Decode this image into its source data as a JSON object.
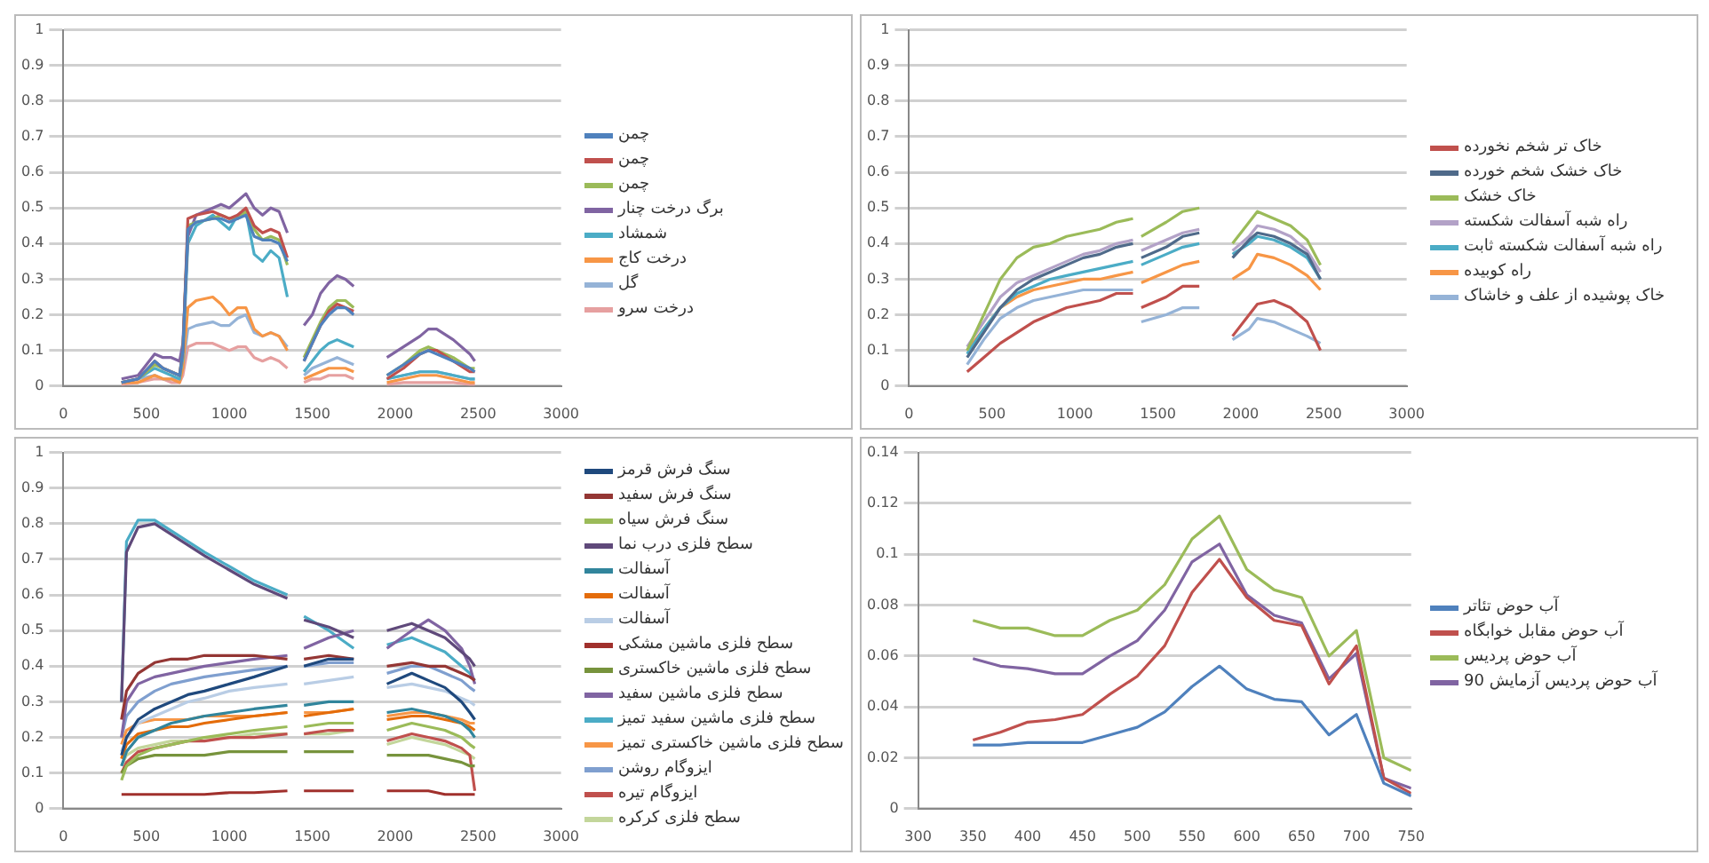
{
  "chart_data": [
    {
      "type": "line",
      "x": [
        350,
        450,
        550,
        600,
        650,
        700,
        720,
        750,
        800,
        900,
        950,
        1000,
        1050,
        1100,
        1150,
        1200,
        1250,
        1300,
        1350,
        1400,
        1450,
        1500,
        1550,
        1600,
        1650,
        1700,
        1750,
        1850,
        1950,
        2050,
        2150,
        2200,
        2250,
        2350,
        2450,
        2480
      ],
      "xlim": [
        0,
        3000
      ],
      "xticks": [
        0,
        500,
        1000,
        1500,
        2000,
        2500,
        3000
      ],
      "ylim": [
        0,
        1
      ],
      "yticks": [
        0,
        0.1,
        0.2,
        0.3,
        0.4,
        0.5,
        0.6,
        0.7,
        0.8,
        0.9,
        1
      ],
      "grid": "y",
      "legend": "right",
      "series": [
        {
          "name": "چمن",
          "color": "#4f81bd",
          "values": [
            0.01,
            0.02,
            0.07,
            0.05,
            0.04,
            0.03,
            0.1,
            0.44,
            0.46,
            0.47,
            0.47,
            0.46,
            0.47,
            0.48,
            0.42,
            0.41,
            0.41,
            0.4,
            0.35,
            null,
            0.07,
            0.12,
            0.17,
            0.2,
            0.22,
            0.22,
            0.2,
            null,
            0.03,
            0.06,
            0.09,
            0.1,
            0.09,
            0.07,
            0.05,
            0.04
          ]
        },
        {
          "name": "چمن",
          "color": "#c0504d",
          "values": [
            0.01,
            0.02,
            0.07,
            0.05,
            0.04,
            0.03,
            0.1,
            0.47,
            0.48,
            0.49,
            0.48,
            0.47,
            0.48,
            0.5,
            0.45,
            0.43,
            0.44,
            0.43,
            0.36,
            null,
            0.07,
            0.12,
            0.17,
            0.21,
            0.23,
            0.22,
            0.21,
            null,
            0.02,
            0.05,
            0.09,
            0.1,
            0.1,
            0.07,
            0.04,
            0.04
          ]
        },
        {
          "name": "چمن",
          "color": "#9bbb59",
          "values": [
            0.01,
            0.02,
            0.06,
            0.05,
            0.04,
            0.03,
            0.1,
            0.45,
            0.46,
            0.47,
            0.48,
            0.47,
            0.47,
            0.49,
            0.44,
            0.41,
            0.42,
            0.41,
            0.34,
            null,
            0.08,
            0.13,
            0.18,
            0.22,
            0.24,
            0.24,
            0.22,
            null,
            0.03,
            0.06,
            0.1,
            0.11,
            0.1,
            0.08,
            0.05,
            0.05
          ]
        },
        {
          "name": "برگ درخت چنار",
          "color": "#8064a2",
          "values": [
            0.02,
            0.03,
            0.09,
            0.08,
            0.08,
            0.07,
            0.12,
            0.42,
            0.48,
            0.5,
            0.51,
            0.5,
            0.52,
            0.54,
            0.5,
            0.48,
            0.5,
            0.49,
            0.43,
            null,
            0.17,
            0.2,
            0.26,
            0.29,
            0.31,
            0.3,
            0.28,
            null,
            0.08,
            0.11,
            0.14,
            0.16,
            0.16,
            0.13,
            0.09,
            0.07
          ]
        },
        {
          "name": "شمشاد",
          "color": "#4bacc6",
          "values": [
            0.01,
            0.02,
            0.05,
            0.04,
            0.03,
            0.02,
            0.08,
            0.4,
            0.45,
            0.48,
            0.46,
            0.44,
            0.48,
            0.49,
            0.37,
            0.35,
            0.38,
            0.36,
            0.25,
            null,
            0.04,
            0.07,
            0.1,
            0.12,
            0.13,
            0.12,
            0.11,
            null,
            0.02,
            0.03,
            0.04,
            0.04,
            0.04,
            0.03,
            0.02,
            0.02
          ]
        },
        {
          "name": "درخت کاج",
          "color": "#f79646",
          "values": [
            0.01,
            0.01,
            0.03,
            0.02,
            0.02,
            0.01,
            0.05,
            0.22,
            0.24,
            0.25,
            0.23,
            0.2,
            0.22,
            0.22,
            0.16,
            0.14,
            0.15,
            0.14,
            0.1,
            null,
            0.02,
            0.03,
            0.04,
            0.05,
            0.05,
            0.05,
            0.04,
            null,
            0.01,
            0.02,
            0.03,
            0.03,
            0.03,
            0.02,
            0.01,
            0.01
          ]
        },
        {
          "name": "گل",
          "color": "#95b3d7",
          "values": [
            0.01,
            0.02,
            0.03,
            0.02,
            0.02,
            0.02,
            0.05,
            0.16,
            0.17,
            0.18,
            0.17,
            0.17,
            0.19,
            0.2,
            0.15,
            0.14,
            0.15,
            0.14,
            0.11,
            null,
            0.03,
            0.05,
            0.06,
            0.07,
            0.08,
            0.07,
            0.06,
            null,
            0.02,
            0.03,
            0.04,
            0.04,
            0.04,
            0.03,
            0.02,
            0.02
          ]
        },
        {
          "name": "درخت سرو",
          "color": "#e6a0a0",
          "values": [
            0.005,
            0.01,
            0.02,
            0.02,
            0.01,
            0.01,
            0.03,
            0.11,
            0.12,
            0.12,
            0.11,
            0.1,
            0.11,
            0.11,
            0.08,
            0.07,
            0.08,
            0.07,
            0.05,
            null,
            0.01,
            0.02,
            0.02,
            0.03,
            0.03,
            0.03,
            0.02,
            null,
            0.005,
            0.01,
            0.01,
            0.01,
            0.01,
            0.01,
            0.005,
            0.005
          ]
        }
      ]
    },
    {
      "type": "line",
      "x": [
        350,
        450,
        550,
        650,
        750,
        850,
        950,
        1050,
        1150,
        1250,
        1350,
        1380,
        1400,
        1550,
        1650,
        1750,
        1850,
        1950,
        2050,
        2100,
        2200,
        2300,
        2400,
        2480
      ],
      "xlim": [
        0,
        3000
      ],
      "xticks": [
        0,
        500,
        1000,
        1500,
        2000,
        2500,
        3000
      ],
      "ylim": [
        0,
        1
      ],
      "yticks": [
        0,
        0.1,
        0.2,
        0.3,
        0.4,
        0.5,
        0.6,
        0.7,
        0.8,
        0.9,
        1
      ],
      "grid": "y",
      "legend": "right",
      "series": [
        {
          "name": "خاک تر شخم نخورده",
          "color": "#c0504d",
          "values": [
            0.04,
            0.08,
            0.12,
            0.15,
            0.18,
            0.2,
            0.22,
            0.23,
            0.24,
            0.26,
            0.26,
            null,
            0.22,
            0.25,
            0.28,
            0.28,
            null,
            0.14,
            0.2,
            0.23,
            0.24,
            0.22,
            0.18,
            0.1
          ]
        },
        {
          "name": "خاک خشک شخم خورده",
          "color": "#4f6a8a",
          "values": [
            0.08,
            0.15,
            0.22,
            0.27,
            0.3,
            0.32,
            0.34,
            0.36,
            0.37,
            0.39,
            0.4,
            null,
            0.36,
            0.39,
            0.42,
            0.43,
            null,
            0.36,
            0.41,
            0.43,
            0.42,
            0.4,
            0.37,
            0.3
          ]
        },
        {
          "name": "خاک خشک",
          "color": "#9bbb59",
          "values": [
            0.1,
            0.2,
            0.3,
            0.36,
            0.39,
            0.4,
            0.42,
            0.43,
            0.44,
            0.46,
            0.47,
            null,
            0.42,
            0.46,
            0.49,
            0.5,
            null,
            0.4,
            0.46,
            0.49,
            0.47,
            0.45,
            0.41,
            0.34
          ]
        },
        {
          "name": "راه شبه آسفالت شکسته",
          "color": "#b3a2c7",
          "values": [
            0.11,
            0.18,
            0.25,
            0.29,
            0.31,
            0.33,
            0.35,
            0.37,
            0.38,
            0.4,
            0.41,
            null,
            0.38,
            0.41,
            0.43,
            0.44,
            null,
            0.38,
            0.42,
            0.45,
            0.44,
            0.42,
            0.38,
            0.32
          ]
        },
        {
          "name": "راه شبه آسفالت شکسته ثابت",
          "color": "#4bacc6",
          "values": [
            0.09,
            0.16,
            0.22,
            0.26,
            0.28,
            0.3,
            0.31,
            0.32,
            0.33,
            0.34,
            0.35,
            null,
            0.34,
            0.37,
            0.39,
            0.4,
            null,
            0.37,
            0.4,
            0.42,
            0.41,
            0.39,
            0.36,
            0.3
          ]
        },
        {
          "name": "راه کوبیده",
          "color": "#f79646",
          "values": [
            0.1,
            0.16,
            0.22,
            0.25,
            0.27,
            0.28,
            0.29,
            0.3,
            0.3,
            0.31,
            0.32,
            null,
            0.29,
            0.32,
            0.34,
            0.35,
            null,
            0.3,
            0.33,
            0.37,
            0.36,
            0.34,
            0.31,
            0.27
          ]
        },
        {
          "name": "خاک پوشیده از علف و خاشاک",
          "color": "#95b3d7",
          "values": [
            0.06,
            0.13,
            0.19,
            0.22,
            0.24,
            0.25,
            0.26,
            0.27,
            0.27,
            0.27,
            0.27,
            null,
            0.18,
            0.2,
            0.22,
            0.22,
            null,
            0.13,
            0.16,
            0.19,
            0.18,
            0.16,
            0.14,
            0.12
          ]
        }
      ]
    },
    {
      "type": "line",
      "x": [
        350,
        380,
        450,
        550,
        650,
        750,
        850,
        1000,
        1150,
        1350,
        1400,
        1450,
        1600,
        1750,
        1850,
        1950,
        2100,
        2200,
        2300,
        2400,
        2450,
        2480
      ],
      "xlim": [
        0,
        3000
      ],
      "xticks": [
        0,
        500,
        1000,
        1500,
        2000,
        2500,
        3000
      ],
      "ylim": [
        0,
        1
      ],
      "yticks": [
        0,
        0.1,
        0.2,
        0.3,
        0.4,
        0.5,
        0.6,
        0.7,
        0.8,
        0.9,
        1
      ],
      "grid": "y",
      "legend": "right",
      "series": [
        {
          "name": "سنگ فرش قرمز",
          "color": "#1f497d",
          "values": [
            0.15,
            0.2,
            0.25,
            0.28,
            0.3,
            0.32,
            0.33,
            0.35,
            0.37,
            0.4,
            null,
            0.4,
            0.42,
            0.42,
            null,
            0.35,
            0.38,
            0.36,
            0.34,
            0.3,
            0.27,
            0.25
          ]
        },
        {
          "name": "سنگ فرش سفید",
          "color": "#943634",
          "values": [
            0.25,
            0.33,
            0.38,
            0.41,
            0.42,
            0.42,
            0.43,
            0.43,
            0.43,
            0.42,
            null,
            0.42,
            0.43,
            0.42,
            null,
            0.4,
            0.41,
            0.4,
            0.4,
            0.38,
            0.37,
            0.36
          ]
        },
        {
          "name": "سنگ فرش سیاه",
          "color": "#9bbb59",
          "values": [
            0.08,
            0.12,
            0.15,
            0.17,
            0.18,
            0.19,
            0.2,
            0.21,
            0.22,
            0.23,
            null,
            0.23,
            0.24,
            0.24,
            null,
            0.22,
            0.24,
            0.23,
            0.22,
            0.2,
            0.18,
            0.17
          ]
        },
        {
          "name": "سطح فلزی درب نما",
          "color": "#5f497a",
          "values": [
            0.3,
            0.72,
            0.79,
            0.8,
            0.77,
            0.74,
            0.71,
            0.67,
            0.63,
            0.59,
            null,
            0.53,
            0.51,
            0.48,
            null,
            0.5,
            0.52,
            0.5,
            0.48,
            0.44,
            0.42,
            0.4
          ]
        },
        {
          "name": "آسفالت",
          "color": "#31859c",
          "values": [
            0.12,
            0.16,
            0.2,
            0.22,
            0.24,
            0.25,
            0.26,
            0.27,
            0.28,
            0.29,
            null,
            0.29,
            0.3,
            0.3,
            null,
            0.27,
            0.28,
            0.27,
            0.26,
            0.24,
            0.22,
            0.2
          ]
        },
        {
          "name": "آسفالت",
          "color": "#e46c0a",
          "values": [
            0.14,
            0.18,
            0.21,
            0.22,
            0.23,
            0.23,
            0.24,
            0.25,
            0.26,
            0.27,
            null,
            0.26,
            0.27,
            0.28,
            null,
            0.25,
            0.26,
            0.26,
            0.25,
            0.24,
            0.23,
            0.22
          ]
        },
        {
          "name": "آسفالت",
          "color": "#b9cde5",
          "values": [
            0.16,
            0.2,
            0.24,
            0.26,
            0.28,
            0.3,
            0.31,
            0.33,
            0.34,
            0.35,
            null,
            0.35,
            0.36,
            0.37,
            null,
            0.34,
            0.35,
            0.34,
            0.33,
            0.31,
            0.3,
            0.29
          ]
        },
        {
          "name": "سطح فلزی ماشین مشکی",
          "color": "#a0302c",
          "values": [
            0.04,
            0.04,
            0.04,
            0.04,
            0.04,
            0.04,
            0.04,
            0.045,
            0.045,
            0.05,
            null,
            0.05,
            0.05,
            0.05,
            null,
            0.05,
            0.05,
            0.05,
            0.04,
            0.04,
            0.04,
            0.04
          ]
        },
        {
          "name": "سطح فلزی ماشین خاکستری",
          "color": "#77933c",
          "values": [
            0.1,
            0.12,
            0.14,
            0.15,
            0.15,
            0.15,
            0.15,
            0.16,
            0.16,
            0.16,
            null,
            0.16,
            0.16,
            0.16,
            null,
            0.15,
            0.15,
            0.15,
            0.14,
            0.13,
            0.12,
            0.12
          ]
        },
        {
          "name": "سطح فلزی ماشین سفید",
          "color": "#8064a2",
          "values": [
            0.2,
            0.3,
            0.35,
            0.37,
            0.38,
            0.39,
            0.4,
            0.41,
            0.42,
            0.43,
            null,
            0.45,
            0.48,
            0.5,
            null,
            0.45,
            0.5,
            0.53,
            0.5,
            0.45,
            0.4,
            0.35
          ]
        },
        {
          "name": "سطح فلزی ماشین سفید تمیز",
          "color": "#4bacc6",
          "values": [
            0.3,
            0.75,
            0.81,
            0.81,
            0.78,
            0.75,
            0.72,
            0.68,
            0.64,
            0.6,
            null,
            0.54,
            0.5,
            0.45,
            null,
            0.46,
            0.48,
            0.46,
            0.44,
            0.4,
            0.38,
            0.36
          ]
        },
        {
          "name": "سطح فلزی ماشین خاکستری تمیز",
          "color": "#f79646",
          "values": [
            0.18,
            0.22,
            0.24,
            0.25,
            0.25,
            0.25,
            0.26,
            0.26,
            0.26,
            0.27,
            null,
            0.27,
            0.27,
            0.28,
            null,
            0.26,
            0.27,
            0.27,
            0.26,
            0.25,
            0.24,
            0.24
          ]
        },
        {
          "name": "ایزوگام روشن",
          "color": "#7f9fcf",
          "values": [
            0.2,
            0.26,
            0.3,
            0.33,
            0.35,
            0.36,
            0.37,
            0.38,
            0.39,
            0.4,
            null,
            0.4,
            0.41,
            0.41,
            null,
            0.38,
            0.4,
            0.4,
            0.38,
            0.36,
            0.34,
            0.33
          ]
        },
        {
          "name": "ایزوگام تیره",
          "color": "#c0504d",
          "values": [
            0.1,
            0.13,
            0.16,
            0.17,
            0.18,
            0.19,
            0.19,
            0.2,
            0.2,
            0.21,
            null,
            0.21,
            0.22,
            0.22,
            null,
            0.19,
            0.21,
            0.2,
            0.19,
            0.17,
            0.15,
            0.05
          ]
        },
        {
          "name": "سطح فلزی کرکره",
          "color": "#c3d69b",
          "values": [
            0.12,
            0.15,
            0.17,
            0.18,
            0.19,
            0.19,
            0.2,
            0.2,
            0.21,
            0.21,
            null,
            0.21,
            0.21,
            0.22,
            null,
            0.18,
            0.2,
            0.19,
            0.18,
            0.16,
            0.15,
            0.14
          ]
        }
      ]
    },
    {
      "type": "line",
      "x": [
        350,
        375,
        400,
        425,
        450,
        475,
        500,
        525,
        550,
        575,
        600,
        625,
        650,
        675,
        700,
        725,
        750
      ],
      "xlim": [
        300,
        750
      ],
      "xticks": [
        300,
        350,
        400,
        450,
        500,
        550,
        600,
        650,
        700,
        750
      ],
      "ylim": [
        0,
        0.14
      ],
      "yticks": [
        0,
        0.02,
        0.04,
        0.06,
        0.08,
        0.1,
        0.12,
        0.14
      ],
      "grid": "y",
      "legend": "right",
      "series": [
        {
          "name": "آب حوض تئاتر",
          "color": "#4f81bd",
          "values": [
            0.025,
            0.025,
            0.026,
            0.026,
            0.026,
            0.029,
            0.032,
            0.038,
            0.048,
            0.056,
            0.047,
            0.043,
            0.042,
            0.029,
            0.037,
            0.01,
            0.005
          ]
        },
        {
          "name": "آب حوض مقابل خوابگاه",
          "color": "#c0504d",
          "values": [
            0.027,
            0.03,
            0.034,
            0.035,
            0.037,
            0.045,
            0.052,
            0.064,
            0.085,
            0.098,
            0.083,
            0.074,
            0.072,
            0.049,
            0.064,
            0.012,
            0.006
          ]
        },
        {
          "name": "آب حوض پردیس",
          "color": "#9bbb59",
          "values": [
            0.074,
            0.071,
            0.071,
            0.068,
            0.068,
            0.074,
            0.078,
            0.088,
            0.106,
            0.115,
            0.094,
            0.086,
            0.083,
            0.06,
            0.07,
            0.02,
            0.015
          ]
        },
        {
          "name": "آب حوض پردیس آزمایش 90",
          "color": "#8064a2",
          "values": [
            0.059,
            0.056,
            0.055,
            0.053,
            0.053,
            0.06,
            0.066,
            0.078,
            0.097,
            0.104,
            0.084,
            0.076,
            0.073,
            0.051,
            0.061,
            0.012,
            0.008
          ]
        }
      ]
    }
  ]
}
